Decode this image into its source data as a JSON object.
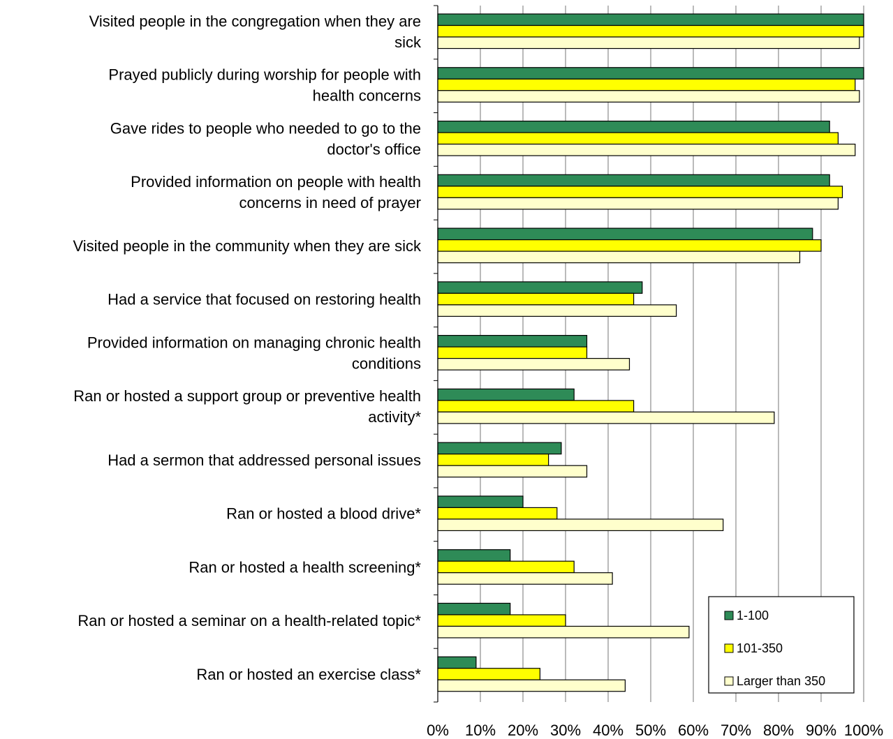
{
  "chart_data": {
    "type": "bar",
    "orientation": "horizontal",
    "title": "",
    "xlabel": "",
    "ylabel": "",
    "xlim": [
      0,
      100
    ],
    "grid": true,
    "legend_position": "bottom-right",
    "categories": [
      [
        "Visited people in the congregation when they are",
        "sick"
      ],
      [
        "Prayed publicly during worship for people with",
        "health concerns"
      ],
      [
        "Gave rides to people who needed to go to the",
        "doctor's office"
      ],
      [
        "Provided information on people with health",
        "concerns in need of prayer"
      ],
      [
        "Visited people in the community when they are sick"
      ],
      [
        "Had a service that focused on restoring health"
      ],
      [
        "Provided information on managing chronic health",
        "conditions"
      ],
      [
        "Ran or hosted a support group or preventive health",
        "activity*"
      ],
      [
        "Had a sermon that addressed personal issues"
      ],
      [
        "Ran or hosted a blood drive*"
      ],
      [
        "Ran or hosted a health screening*"
      ],
      [
        "Ran or hosted a seminar on a health-related topic*"
      ],
      [
        "Ran or hosted an exercise class*"
      ]
    ],
    "ticks": [
      "0%",
      "10%",
      "20%",
      "30%",
      "40%",
      "50%",
      "60%",
      "70%",
      "80%",
      "90%",
      "100%"
    ],
    "series": [
      {
        "name": "1-100",
        "color": "#2e8b57",
        "values": [
          100,
          100,
          92,
          92,
          88,
          48,
          35,
          32,
          29,
          20,
          17,
          17,
          9
        ]
      },
      {
        "name": "101-350",
        "color": "#ffff00",
        "values": [
          100,
          98,
          94,
          95,
          90,
          46,
          35,
          46,
          26,
          28,
          32,
          30,
          24
        ]
      },
      {
        "name": "Larger than 350",
        "color": "#ffffcc",
        "values": [
          99,
          99,
          98,
          94,
          85,
          56,
          45,
          79,
          35,
          67,
          41,
          59,
          44
        ]
      }
    ]
  }
}
